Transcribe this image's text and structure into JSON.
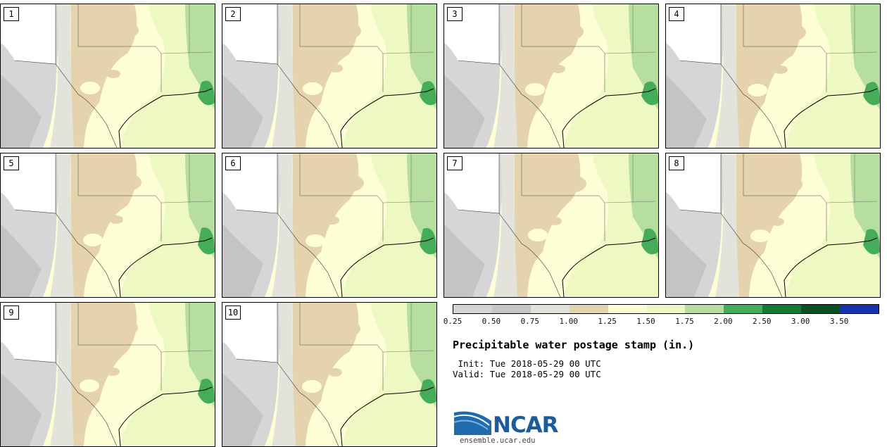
{
  "panels": [
    {
      "label": "1"
    },
    {
      "label": "2"
    },
    {
      "label": "3"
    },
    {
      "label": "4"
    },
    {
      "label": "5"
    },
    {
      "label": "6"
    },
    {
      "label": "7"
    },
    {
      "label": "8"
    },
    {
      "label": "9"
    },
    {
      "label": "10"
    }
  ],
  "colorbar": {
    "colors": [
      "#d4d4d4",
      "#c6c6c6",
      "#e2e2da",
      "#e4d3ad",
      "#fefed6",
      "#eef8c2",
      "#b6dea0",
      "#45ad5a",
      "#157a36",
      "#0b4f24",
      "#1a33b2"
    ],
    "ticks": [
      "0.25",
      "0.50",
      "0.75",
      "1.00",
      "1.25",
      "1.50",
      "1.75",
      "2.00",
      "2.50",
      "3.00",
      "3.50"
    ]
  },
  "title": "Precipitable water postage stamp (in.)",
  "init_line": " Init: Tue 2018-05-29 00 UTC",
  "valid_line": "Valid: Tue 2018-05-29 00 UTC",
  "logo": {
    "text": "NCAR",
    "url": "ensemble.ucar.edu"
  }
}
